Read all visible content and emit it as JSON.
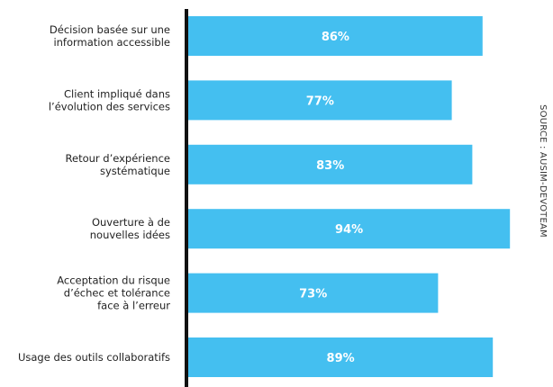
{
  "chart_data": {
    "type": "bar",
    "orientation": "horizontal",
    "categories": [
      "Décision basée sur une information accessible",
      "Client impliqué dans l’évolution des services",
      "Retour d’expérience systématique",
      "Ouverture à de nouvelles idées",
      "Acceptation du risque d’échec et tolérance face à l’erreur",
      "Usage des outils collaboratifs"
    ],
    "label_lines": [
      [
        "Décision basée sur une",
        "information accessible"
      ],
      [
        "Client impliqué dans",
        "l’évolution des services"
      ],
      [
        "Retour d’expérience",
        "systématique"
      ],
      [
        "Ouverture à de",
        "nouvelles idées"
      ],
      [
        "Acceptation du risque",
        "d’échec et tolérance",
        "face à l’erreur"
      ],
      [
        "Usage des outils collaboratifs"
      ]
    ],
    "values": [
      86,
      77,
      83,
      94,
      73,
      89
    ],
    "value_labels": [
      "86%",
      "77%",
      "83%",
      "94%",
      "73%",
      "89%"
    ],
    "xlim": [
      0,
      100
    ],
    "grid": false,
    "legend": "none",
    "source_text": "SOURCE : AUSIM-DEVOTEAM",
    "bar_color": "#44bff0",
    "axis_color": "#111111"
  }
}
